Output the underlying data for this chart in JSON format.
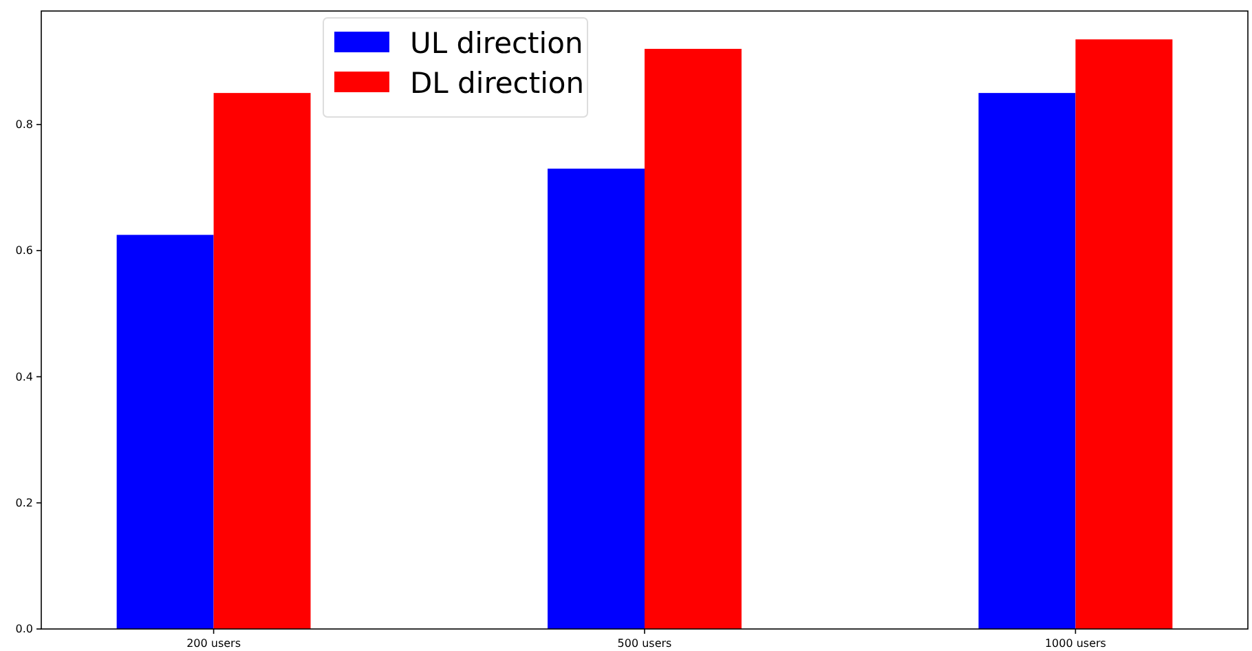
{
  "chart_data": {
    "type": "bar",
    "categories": [
      "200 users",
      "500 users",
      "1000 users"
    ],
    "series": [
      {
        "name": "UL direction",
        "color": "#0000ff",
        "values": [
          0.625,
          0.73,
          0.85
        ]
      },
      {
        "name": "DL direction",
        "color": "#ff0000",
        "values": [
          0.85,
          0.92,
          0.935
        ]
      }
    ],
    "ylim": [
      0,
      0.98
    ],
    "yticks": [
      {
        "value": 0,
        "label": "0.0"
      },
      {
        "value": 0.2,
        "label": "0.2"
      },
      {
        "value": 0.4,
        "label": "0.4"
      },
      {
        "value": 0.6,
        "label": "0.6"
      },
      {
        "value": 0.8,
        "label": "0.8"
      }
    ],
    "grid": false,
    "legend": "top left"
  }
}
